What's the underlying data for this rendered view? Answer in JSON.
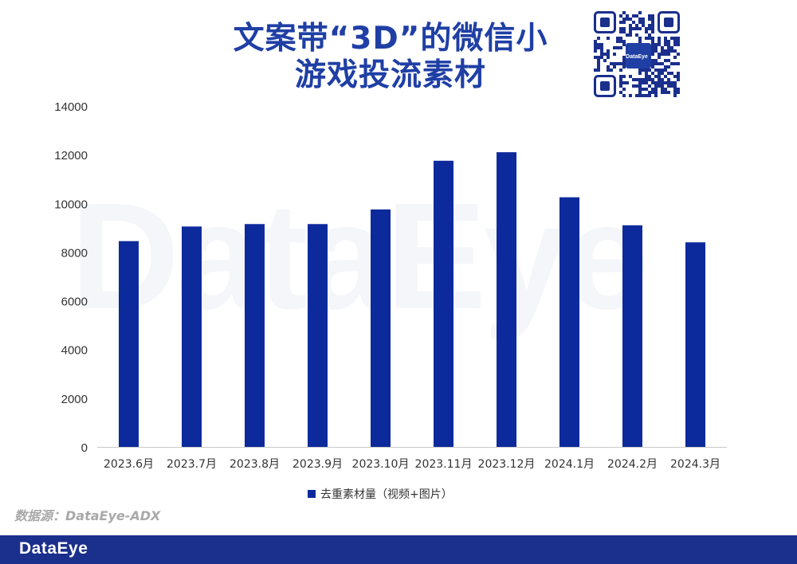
{
  "header": {
    "title_line1": "文案带“3D”的微信小",
    "title_line2": "游戏投流素材"
  },
  "watermark": {
    "text": "DataEye"
  },
  "qr": {
    "badge_text": "DataEye"
  },
  "source": {
    "text": "数据源：DataEye-ADX"
  },
  "footer": {
    "logo_text": "DataEye"
  },
  "colors": {
    "bar": "#0d2a9c",
    "title": "#1f3fa5",
    "footer": "#1b2f8c"
  },
  "chart_data": {
    "type": "bar",
    "title": "",
    "xlabel": "",
    "ylabel": "",
    "categories": [
      "2023.6月",
      "2023.7月",
      "2023.8月",
      "2023.9月",
      "2023.10月",
      "2023.11月",
      "2023.12月",
      "2024.1月",
      "2024.2月",
      "2024.3月"
    ],
    "series": [
      {
        "name": "去重素材量（视频+图片）",
        "values": [
          8450,
          9050,
          9150,
          9150,
          9750,
          11750,
          12100,
          10250,
          9100,
          8400
        ]
      }
    ],
    "ylim": [
      0,
      14000
    ],
    "yticks": [
      0,
      2000,
      4000,
      6000,
      8000,
      10000,
      12000,
      14000
    ],
    "grid": false,
    "legend": "bottom-center"
  }
}
